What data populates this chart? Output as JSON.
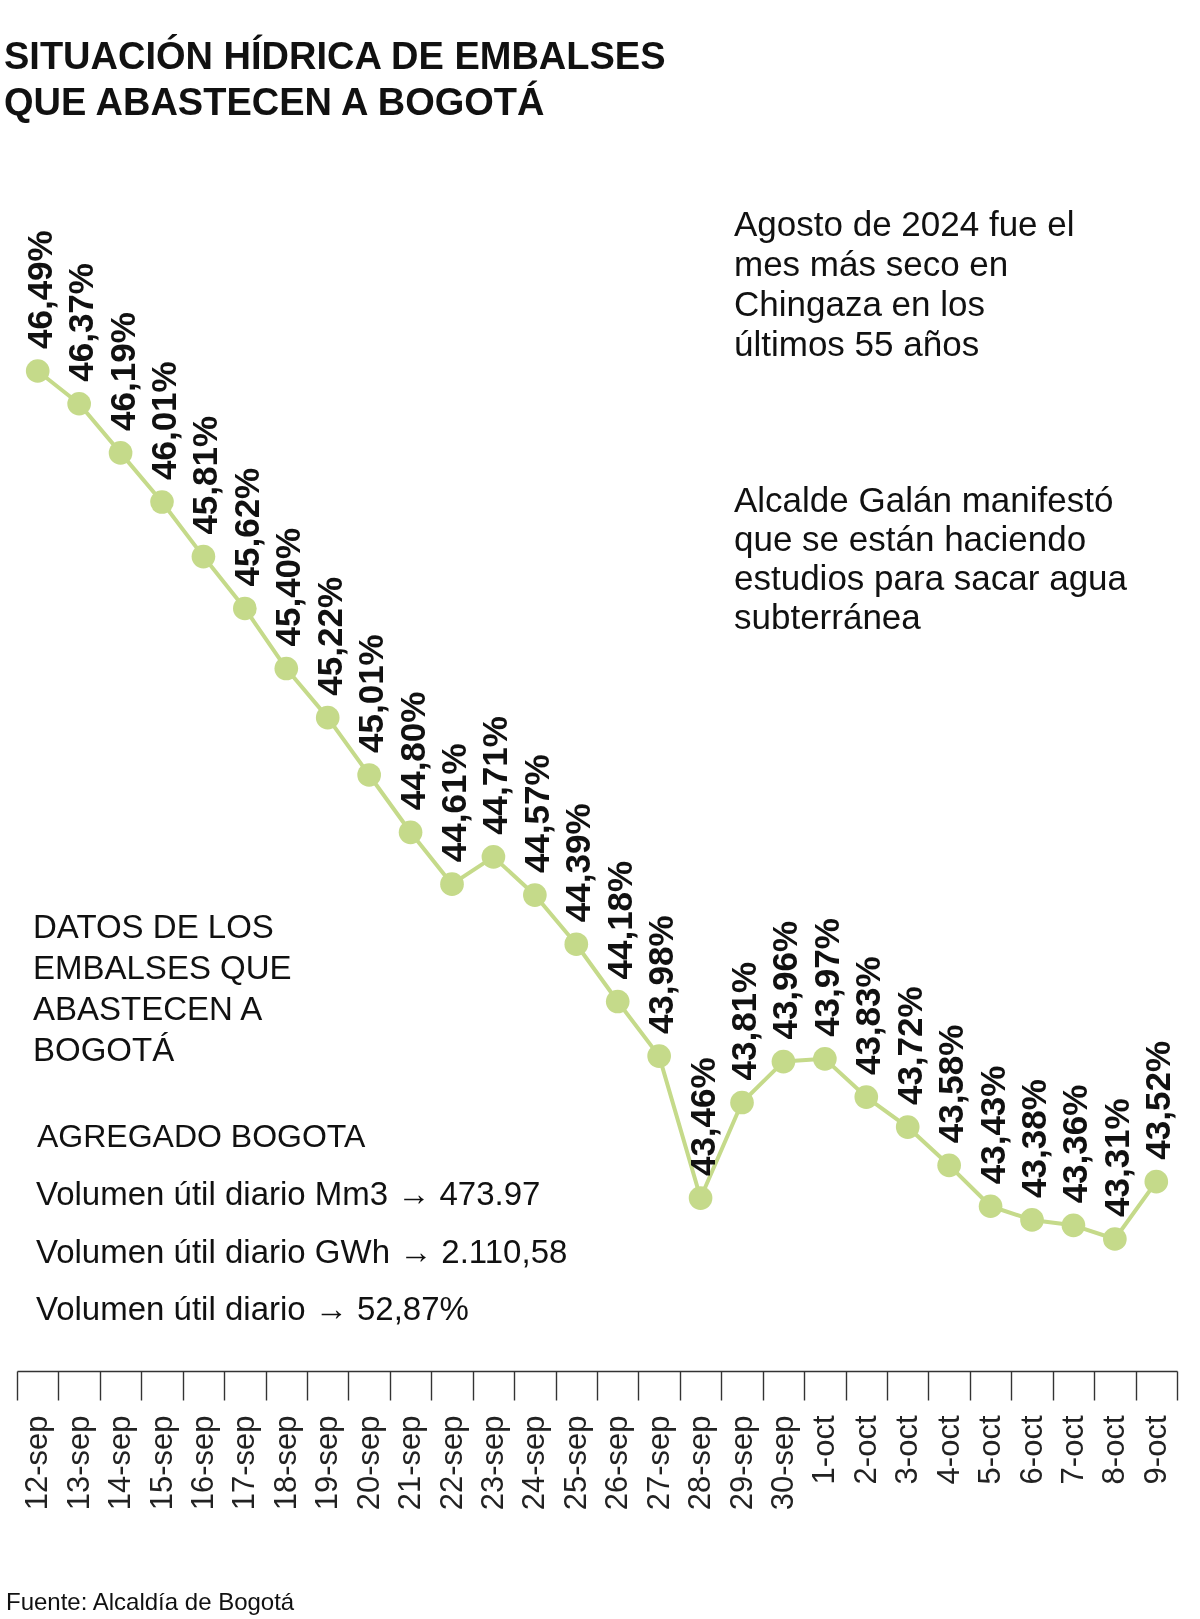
{
  "chart_data": {
    "type": "line",
    "title": "SITUACIÓN HÍDRICA DE EMBALSES QUE ABASTECEN A BOGOTÁ",
    "categories": [
      "12-sep",
      "13-sep",
      "14-sep",
      "15-sep",
      "16-sep",
      "17-sep",
      "18-sep",
      "19-sep",
      "20-sep",
      "21-sep",
      "22-sep",
      "23-sep",
      "24-sep",
      "25-sep",
      "26-sep",
      "27-sep",
      "28-sep",
      "29-sep",
      "30-sep",
      "1-oct",
      "2-oct",
      "3-oct",
      "4-oct",
      "5-oct",
      "6-oct",
      "7-oct",
      "8-oct",
      "9-oct"
    ],
    "values": [
      46.49,
      46.37,
      46.19,
      46.01,
      45.81,
      45.62,
      45.4,
      45.22,
      45.01,
      44.8,
      44.61,
      44.71,
      44.57,
      44.39,
      44.18,
      43.98,
      43.46,
      43.81,
      43.96,
      43.97,
      43.83,
      43.72,
      43.58,
      43.43,
      43.38,
      43.36,
      43.31,
      43.52
    ],
    "value_labels": [
      "46,49%",
      "46,37%",
      "46,19%",
      "46,01%",
      "45,81%",
      "45,62%",
      "45,40%",
      "45,22%",
      "45,01%",
      "44,80%",
      "44,61%",
      "44,71%",
      "44,57%",
      "44,39%",
      "44,18%",
      "43,98%",
      "43,46%",
      "43,81%",
      "43,96%",
      "43,97%",
      "43,83%",
      "43,72%",
      "43,58%",
      "43,43%",
      "43,38%",
      "43,36%",
      "43,31%",
      "43,52%"
    ],
    "color": "#c5da8a",
    "marker": "circle",
    "line_style": "solid",
    "tick_labels": "x",
    "annotations": [
      "Agosto de 2024 fue el mes más seco en Chingaza en los últimos 55 años",
      "Alcalde Galán manifestó que se están haciendo estudios para sacar agua subterránea",
      "DATOS DE LOS EMBALSES QUE ABASTECEN A BOGOTÁ",
      "AGREGADO BOGOTA",
      "Volumen útil diario Mm3 → 473.97",
      "Volumen útil diario GWh → 2.110,58",
      "Volumen útil diario → 52,87%",
      "Fuente: Alcaldía de Bogotá"
    ]
  }
}
